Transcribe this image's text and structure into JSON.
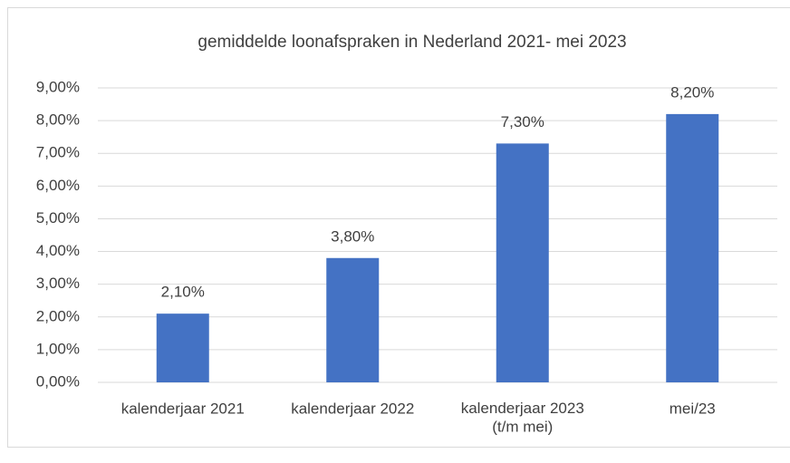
{
  "chart_data": {
    "type": "bar",
    "title": "gemiddelde loonafspraken in Nederland 2021- mei 2023",
    "categories": [
      "kalenderjaar 2021",
      "kalenderjaar 2022",
      "kalenderjaar 2023\n(t/m mei)",
      "mei/23"
    ],
    "values": [
      2.1,
      3.8,
      7.3,
      8.2
    ],
    "value_labels": [
      "2,10%",
      "3,80%",
      "7,30%",
      "8,20%"
    ],
    "color": "#4472c4",
    "ylim": [
      0,
      9
    ],
    "yticks": [
      {
        "value": 0,
        "label": "0,00%"
      },
      {
        "value": 1,
        "label": "1,00%"
      },
      {
        "value": 2,
        "label": "2,00%"
      },
      {
        "value": 3,
        "label": "3,00%"
      },
      {
        "value": 4,
        "label": "4,00%"
      },
      {
        "value": 5,
        "label": "5,00%"
      },
      {
        "value": 6,
        "label": "6,00%"
      },
      {
        "value": 7,
        "label": "7,00%"
      },
      {
        "value": 8,
        "label": "8,00%"
      },
      {
        "value": 9,
        "label": "9,00%"
      }
    ],
    "grid": true
  }
}
